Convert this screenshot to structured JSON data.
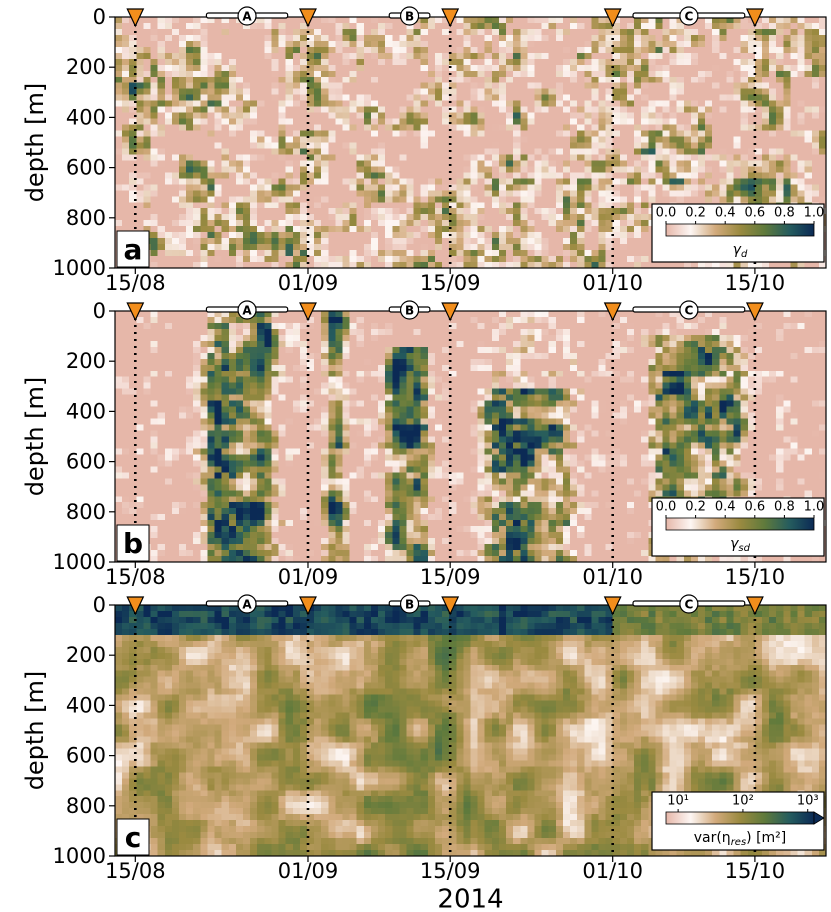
{
  "chart_data": [
    {
      "type": "heatmap",
      "panel_label": "a",
      "ylabel": "depth [m]",
      "ylim": [
        0,
        1000
      ],
      "y_inverted": true,
      "yticks": [
        0,
        200,
        400,
        600,
        800,
        1000
      ],
      "xlim": [
        "2014-08-13",
        "2014-10-22"
      ],
      "xticks": [
        {
          "value": "2014-08-15",
          "label": "15/08"
        },
        {
          "value": "2014-09-01",
          "label": "01/09"
        },
        {
          "value": "2014-09-15",
          "label": "15/09"
        },
        {
          "value": "2014-10-01",
          "label": "01/10"
        },
        {
          "value": "2014-10-15",
          "label": "15/10"
        }
      ],
      "markers": [
        "2014-08-15",
        "2014-09-01",
        "2014-09-15",
        "2014-10-01",
        "2014-10-15"
      ],
      "marker_color": "#f28e1c",
      "periods": [
        {
          "label": "A",
          "start": "2014-08-22",
          "end": "2014-08-30"
        },
        {
          "label": "B",
          "start": "2014-09-09",
          "end": "2014-09-13"
        },
        {
          "label": "C",
          "start": "2014-10-03",
          "end": "2014-10-14"
        }
      ],
      "colormap": [
        "#e6b7a9",
        "#fdf6f3",
        "#d2aa7c",
        "#9a8a40",
        "#5f7a3c",
        "#255c5e",
        "#0b2a55"
      ],
      "colorbar": {
        "label": {
          "symbol": "γ",
          "subscript": "d",
          "suffix": ""
        },
        "scale": "linear",
        "clim": [
          0,
          1
        ],
        "extend": "neither",
        "ticks": [
          {
            "value": 0,
            "label": "0.0"
          },
          {
            "value": 0.2,
            "label": "0.2"
          },
          {
            "value": 0.4,
            "label": "0.4"
          },
          {
            "value": 0.6,
            "label": "0.6"
          },
          {
            "value": 0.8,
            "label": "0.8"
          },
          {
            "value": 1,
            "label": "1.0"
          }
        ]
      }
    },
    {
      "type": "heatmap",
      "panel_label": "b",
      "ylabel": "depth [m]",
      "ylim": [
        0,
        1000
      ],
      "y_inverted": true,
      "yticks": [
        0,
        200,
        400,
        600,
        800,
        1000
      ],
      "xlim": [
        "2014-08-13",
        "2014-10-22"
      ],
      "xticks": [
        {
          "value": "2014-08-15",
          "label": "15/08"
        },
        {
          "value": "2014-09-01",
          "label": "01/09"
        },
        {
          "value": "2014-09-15",
          "label": "15/09"
        },
        {
          "value": "2014-10-01",
          "label": "01/10"
        },
        {
          "value": "2014-10-15",
          "label": "15/10"
        }
      ],
      "markers": [
        "2014-08-15",
        "2014-09-01",
        "2014-09-15",
        "2014-10-01",
        "2014-10-15"
      ],
      "marker_color": "#f28e1c",
      "periods": [
        {
          "label": "A",
          "start": "2014-08-22",
          "end": "2014-08-30"
        },
        {
          "label": "B",
          "start": "2014-09-09",
          "end": "2014-09-13"
        },
        {
          "label": "C",
          "start": "2014-10-03",
          "end": "2014-10-14"
        }
      ],
      "colormap": [
        "#e6b7a9",
        "#fdf6f3",
        "#d2aa7c",
        "#9a8a40",
        "#5f7a3c",
        "#255c5e",
        "#0b2a55"
      ],
      "colorbar": {
        "label": {
          "symbol": "γ",
          "subscript": "sd",
          "suffix": ""
        },
        "scale": "linear",
        "clim": [
          0,
          1
        ],
        "extend": "neither",
        "ticks": [
          {
            "value": 0,
            "label": "0.0"
          },
          {
            "value": 0.2,
            "label": "0.2"
          },
          {
            "value": 0.4,
            "label": "0.4"
          },
          {
            "value": 0.6,
            "label": "0.6"
          },
          {
            "value": 0.8,
            "label": "0.8"
          },
          {
            "value": 1,
            "label": "1.0"
          }
        ]
      }
    },
    {
      "type": "heatmap",
      "panel_label": "c",
      "ylabel": "depth [m]",
      "xlabel": "2014",
      "ylim": [
        0,
        1000
      ],
      "y_inverted": true,
      "yticks": [
        0,
        200,
        400,
        600,
        800,
        1000
      ],
      "xlim": [
        "2014-08-13",
        "2014-10-22"
      ],
      "xticks": [
        {
          "value": "2014-08-15",
          "label": "15/08"
        },
        {
          "value": "2014-09-01",
          "label": "01/09"
        },
        {
          "value": "2014-09-15",
          "label": "15/09"
        },
        {
          "value": "2014-10-01",
          "label": "01/10"
        },
        {
          "value": "2014-10-15",
          "label": "15/10"
        }
      ],
      "markers": [
        "2014-08-15",
        "2014-09-01",
        "2014-09-15",
        "2014-10-01",
        "2014-10-15"
      ],
      "marker_color": "#f28e1c",
      "periods": [
        {
          "label": "A",
          "start": "2014-08-22",
          "end": "2014-08-30"
        },
        {
          "label": "B",
          "start": "2014-09-09",
          "end": "2014-09-13"
        },
        {
          "label": "C",
          "start": "2014-10-03",
          "end": "2014-10-14"
        }
      ],
      "colormap": [
        "#e6b7a9",
        "#fdf6f3",
        "#d2aa7c",
        "#9a8a40",
        "#5f7a3c",
        "#255c5e",
        "#0b2a55"
      ],
      "colorbar": {
        "label": {
          "symbol": "var(η",
          "subscript": "res",
          "suffix": ") [m²]"
        },
        "scale": "log",
        "clim": [
          6.5,
          1250
        ],
        "extend": "max",
        "ticks": [
          {
            "value": 10,
            "label": "10¹"
          },
          {
            "value": 100,
            "label": "10²"
          },
          {
            "value": 1000,
            "label": "10³"
          }
        ]
      }
    }
  ]
}
